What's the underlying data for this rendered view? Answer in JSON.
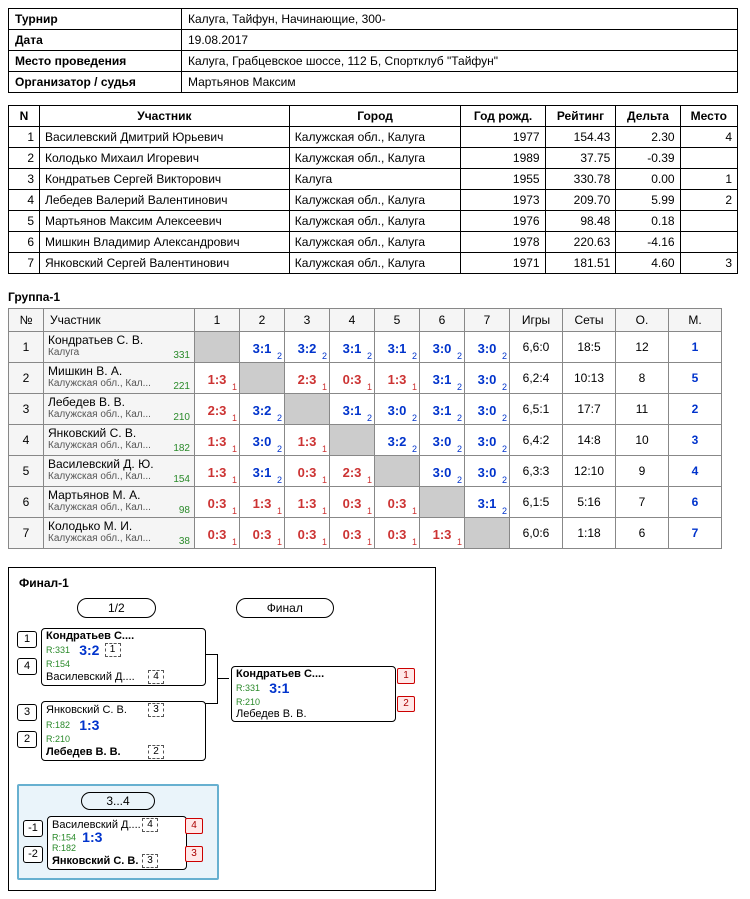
{
  "info": {
    "rows": [
      {
        "label": "Турнир",
        "value": "Калуга, Тайфун, Начинающие, 300-"
      },
      {
        "label": "Дата",
        "value": "19.08.2017"
      },
      {
        "label": "Место проведения",
        "value": "Калуга, Грабцевское шоссе, 112 Б, Спортклуб \"Тайфун\""
      },
      {
        "label": "Организатор / судья",
        "value": "Мартьянов Максим"
      }
    ]
  },
  "participants": {
    "headers": [
      "N",
      "Участник",
      "Город",
      "Год рожд.",
      "Рейтинг",
      "Дельта",
      "Место"
    ],
    "rows": [
      [
        "1",
        "Василевский Дмитрий Юрьевич",
        "Калужская обл., Калуга",
        "1977",
        "154.43",
        "2.30",
        "4"
      ],
      [
        "2",
        "Колодько Михаил Игоревич",
        "Калужская обл., Калуга",
        "1989",
        "37.75",
        "-0.39",
        ""
      ],
      [
        "3",
        "Кондратьев Сергей Викторович",
        "Калуга",
        "1955",
        "330.78",
        "0.00",
        "1"
      ],
      [
        "4",
        "Лебедев Валерий Валентинович",
        "Калужская обл., Калуга",
        "1973",
        "209.70",
        "5.99",
        "2"
      ],
      [
        "5",
        "Мартьянов Максим Алексеевич",
        "Калужская обл., Калуга",
        "1976",
        "98.48",
        "0.18",
        ""
      ],
      [
        "6",
        "Мишкин Владимир Александрович",
        "Калужская обл., Калуга",
        "1978",
        "220.63",
        "-4.16",
        ""
      ],
      [
        "7",
        "Янковский Сергей Валентинович",
        "Калужская обл., Калуга",
        "1971",
        "181.51",
        "4.60",
        "3"
      ]
    ]
  },
  "group": {
    "title": "Группа-1",
    "headers": {
      "num": "№",
      "part": "Участник",
      "games": "Игры",
      "sets": "Сеты",
      "pts": "О.",
      "place": "М."
    },
    "cols": [
      "1",
      "2",
      "3",
      "4",
      "5",
      "6",
      "7"
    ],
    "rows": [
      {
        "num": "1",
        "name": "Кондратьев С. В.",
        "city": "Калуга",
        "rating": "331",
        "cells": [
          null,
          {
            "s": "3:1",
            "sub": "2",
            "w": true
          },
          {
            "s": "3:2",
            "sub": "2",
            "w": true
          },
          {
            "s": "3:1",
            "sub": "2",
            "w": true
          },
          {
            "s": "3:1",
            "sub": "2",
            "w": true
          },
          {
            "s": "3:0",
            "sub": "2",
            "w": true
          },
          {
            "s": "3:0",
            "sub": "2",
            "w": true
          }
        ],
        "games": "6,6:0",
        "sets": "18:5",
        "pts": "12",
        "place": "1"
      },
      {
        "num": "2",
        "name": "Мишкин В. А.",
        "city": "Калужская обл., Кал...",
        "rating": "221",
        "cells": [
          {
            "s": "1:3",
            "sub": "1",
            "w": false
          },
          null,
          {
            "s": "2:3",
            "sub": "1",
            "w": false
          },
          {
            "s": "0:3",
            "sub": "1",
            "w": false
          },
          {
            "s": "1:3",
            "sub": "1",
            "w": false
          },
          {
            "s": "3:1",
            "sub": "2",
            "w": true
          },
          {
            "s": "3:0",
            "sub": "2",
            "w": true
          }
        ],
        "games": "6,2:4",
        "sets": "10:13",
        "pts": "8",
        "place": "5"
      },
      {
        "num": "3",
        "name": "Лебедев В. В.",
        "city": "Калужская обл., Кал...",
        "rating": "210",
        "cells": [
          {
            "s": "2:3",
            "sub": "1",
            "w": false
          },
          {
            "s": "3:2",
            "sub": "2",
            "w": true
          },
          null,
          {
            "s": "3:1",
            "sub": "2",
            "w": true
          },
          {
            "s": "3:0",
            "sub": "2",
            "w": true
          },
          {
            "s": "3:1",
            "sub": "2",
            "w": true
          },
          {
            "s": "3:0",
            "sub": "2",
            "w": true
          }
        ],
        "games": "6,5:1",
        "sets": "17:7",
        "pts": "11",
        "place": "2"
      },
      {
        "num": "4",
        "name": "Янковский С. В.",
        "city": "Калужская обл., Кал...",
        "rating": "182",
        "cells": [
          {
            "s": "1:3",
            "sub": "1",
            "w": false
          },
          {
            "s": "3:0",
            "sub": "2",
            "w": true
          },
          {
            "s": "1:3",
            "sub": "1",
            "w": false
          },
          null,
          {
            "s": "3:2",
            "sub": "2",
            "w": true
          },
          {
            "s": "3:0",
            "sub": "2",
            "w": true
          },
          {
            "s": "3:0",
            "sub": "2",
            "w": true
          }
        ],
        "games": "6,4:2",
        "sets": "14:8",
        "pts": "10",
        "place": "3"
      },
      {
        "num": "5",
        "name": "Василевский Д. Ю.",
        "city": "Калужская обл., Кал...",
        "rating": "154",
        "cells": [
          {
            "s": "1:3",
            "sub": "1",
            "w": false
          },
          {
            "s": "3:1",
            "sub": "2",
            "w": true
          },
          {
            "s": "0:3",
            "sub": "1",
            "w": false
          },
          {
            "s": "2:3",
            "sub": "1",
            "w": false
          },
          null,
          {
            "s": "3:0",
            "sub": "2",
            "w": true
          },
          {
            "s": "3:0",
            "sub": "2",
            "w": true
          }
        ],
        "games": "6,3:3",
        "sets": "12:10",
        "pts": "9",
        "place": "4"
      },
      {
        "num": "6",
        "name": "Мартьянов М. А.",
        "city": "Калужская обл., Кал...",
        "rating": "98",
        "cells": [
          {
            "s": "0:3",
            "sub": "1",
            "w": false
          },
          {
            "s": "1:3",
            "sub": "1",
            "w": false
          },
          {
            "s": "1:3",
            "sub": "1",
            "w": false
          },
          {
            "s": "0:3",
            "sub": "1",
            "w": false
          },
          {
            "s": "0:3",
            "sub": "1",
            "w": false
          },
          null,
          {
            "s": "3:1",
            "sub": "2",
            "w": true
          }
        ],
        "games": "6,1:5",
        "sets": "5:16",
        "pts": "7",
        "place": "6"
      },
      {
        "num": "7",
        "name": "Колодько М. И.",
        "city": "Калужская обл., Кал...",
        "rating": "38",
        "cells": [
          {
            "s": "0:3",
            "sub": "1",
            "w": false
          },
          {
            "s": "0:3",
            "sub": "1",
            "w": false
          },
          {
            "s": "0:3",
            "sub": "1",
            "w": false
          },
          {
            "s": "0:3",
            "sub": "1",
            "w": false
          },
          {
            "s": "0:3",
            "sub": "1",
            "w": false
          },
          {
            "s": "1:3",
            "sub": "1",
            "w": false
          },
          null
        ],
        "games": "6,0:6",
        "sets": "1:18",
        "pts": "6",
        "place": "7"
      }
    ]
  },
  "bracket": {
    "title": "Финал-1",
    "rounds": {
      "semi": "1/2",
      "final": "Финал",
      "minor": "3...4"
    },
    "semi1": {
      "seedA": "1",
      "seedB": "4",
      "pA": "Кондратьев С....",
      "pB": "Василевский Д....",
      "rA": "R:331",
      "rB": "R:154",
      "score": "3:2",
      "winTop": true,
      "sub1": "1",
      "sub2": "4"
    },
    "semi2": {
      "seedA": "3",
      "seedB": "2",
      "pA": "Янковский С. В.",
      "pB": "Лебедев В. В.",
      "rA": "R:182",
      "rB": "R:210",
      "score": "1:3",
      "winTop": false,
      "sub1": "3",
      "sub2": "2"
    },
    "final": {
      "pA": "Кондратьев С....",
      "pB": "Лебедев В. В.",
      "rA": "R:331",
      "rB": "R:210",
      "score": "3:1",
      "winTop": true,
      "finA": "1",
      "finB": "2"
    },
    "minor": {
      "seedA": "-1",
      "seedB": "-2",
      "pA": "Василевский Д....",
      "pB": "Янковский С. В.",
      "rA": "R:154",
      "rB": "R:182",
      "score": "1:3",
      "winTop": false,
      "sub1": "4",
      "sub2": "3",
      "finA": "4",
      "finB": "3"
    }
  },
  "colors": {
    "win": "#0033cc",
    "lose": "#cc3333",
    "rating": "#2a8a2a",
    "minor_bg": "#eaf4fa",
    "minor_border": "#67b0d0"
  }
}
